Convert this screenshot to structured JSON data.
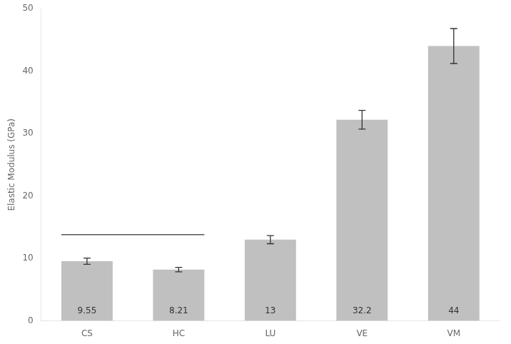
{
  "chart_data": {
    "type": "bar",
    "categories": [
      "CS",
      "HC",
      "LU",
      "VE",
      "VM"
    ],
    "values": [
      9.55,
      8.21,
      13,
      32.2,
      44
    ],
    "errors": [
      0.5,
      0.35,
      0.65,
      1.5,
      2.8
    ],
    "color": "#C0C0C0",
    "ylabel": "Elastic Modulus (GPa)",
    "ylim": [
      0,
      50
    ],
    "yticks": [
      0,
      10,
      20,
      30,
      40,
      50
    ],
    "data_labels": true,
    "annotations": [
      {
        "type": "line",
        "y": 13.8,
        "x": [
          "CS",
          "HC"
        ]
      }
    ],
    "grid": false
  }
}
